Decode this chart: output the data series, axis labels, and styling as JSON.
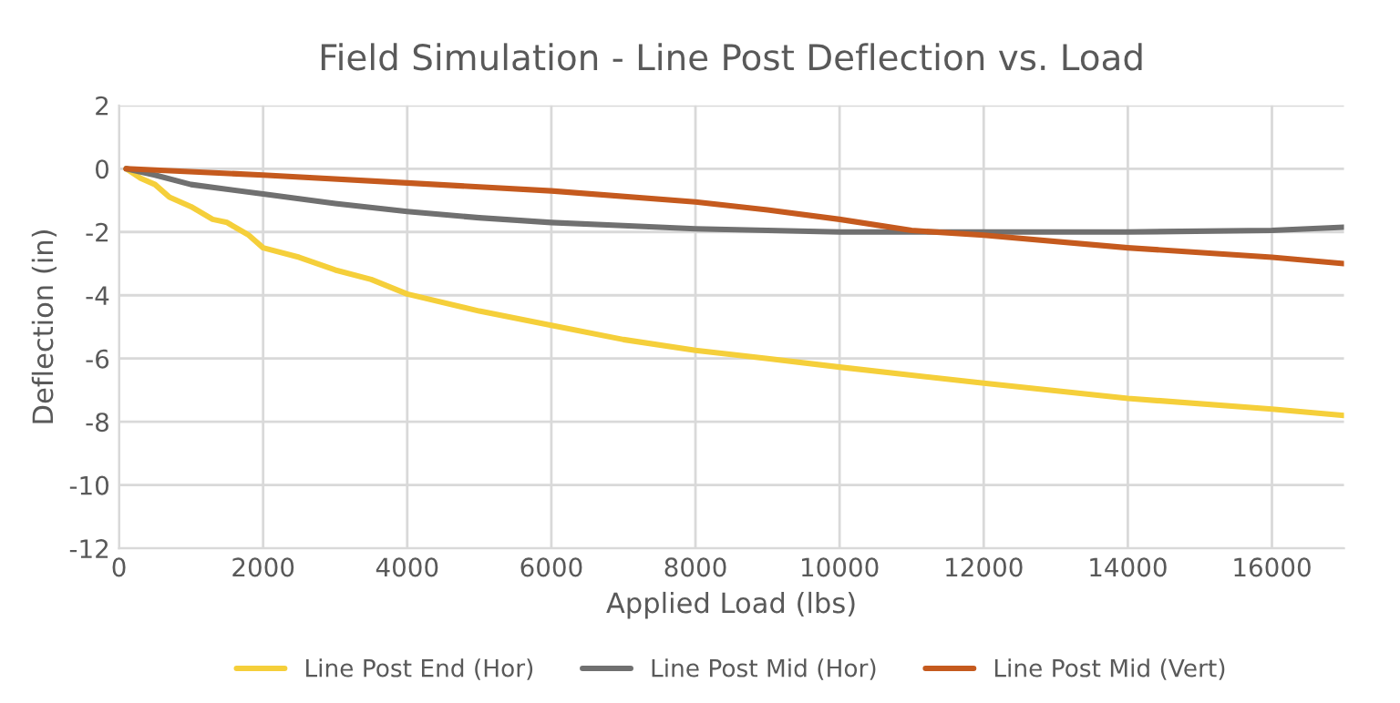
{
  "chart_data": {
    "type": "line",
    "title": "Field Simulation - Line Post Deflection vs. Load",
    "xlabel": "Applied Load (lbs)",
    "ylabel": "Deflection (in)",
    "xlim": [
      0,
      17000
    ],
    "xticks": [
      0,
      2000,
      4000,
      6000,
      8000,
      10000,
      12000,
      14000,
      16000
    ],
    "ylim": [
      -12,
      2
    ],
    "yticks": [
      -12,
      -10,
      -8,
      -6,
      -4,
      -2,
      0,
      2
    ],
    "grid": true,
    "legend": "bottom",
    "marker": "none",
    "line_style": "solid",
    "series": [
      {
        "name": "Line Post End (Hor)",
        "color": "#f5cf3a",
        "x": [
          100,
          300,
          500,
          700,
          1000,
          1300,
          1500,
          1800,
          2000,
          2500,
          3000,
          3500,
          4000,
          5000,
          6000,
          7000,
          8000,
          9000,
          10000,
          12000,
          14000,
          16000,
          17000
        ],
        "values": [
          0,
          -0.3,
          -0.5,
          -0.9,
          -1.2,
          -1.6,
          -1.7,
          -2.1,
          -2.5,
          -2.8,
          -3.2,
          -3.5,
          -3.96,
          -4.5,
          -4.95,
          -5.4,
          -5.74,
          -6.0,
          -6.27,
          -6.78,
          -7.26,
          -7.6,
          -7.8
        ]
      },
      {
        "name": "Line Post Mid (Hor)",
        "color": "#707070",
        "x": [
          100,
          500,
          1000,
          2000,
          3000,
          4000,
          5000,
          6000,
          7000,
          8000,
          9000,
          10000,
          12000,
          14000,
          16000,
          17000
        ],
        "values": [
          0,
          -0.2,
          -0.5,
          -0.8,
          -1.1,
          -1.35,
          -1.55,
          -1.7,
          -1.8,
          -1.9,
          -1.95,
          -2.0,
          -2.0,
          -2.0,
          -1.95,
          -1.85
        ]
      },
      {
        "name": "Line Post Mid (Vert)",
        "color": "#c55a1e",
        "x": [
          100,
          2000,
          4000,
          6000,
          8000,
          9000,
          10000,
          11000,
          12000,
          14000,
          16000,
          17000
        ],
        "values": [
          0,
          -0.2,
          -0.45,
          -0.7,
          -1.05,
          -1.3,
          -1.6,
          -1.95,
          -2.1,
          -2.5,
          -2.8,
          -3.0
        ]
      }
    ]
  }
}
